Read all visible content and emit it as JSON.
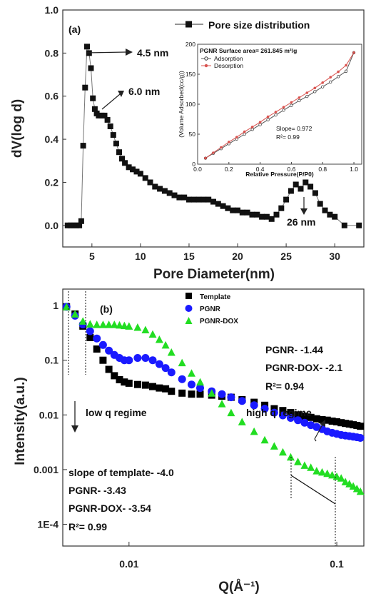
{
  "chart_data": [
    {
      "id": "a",
      "type": "line",
      "panel_label": "(a)",
      "xlabel": "Pore Diameter(nm)",
      "ylabel": "dV(log d)",
      "xlim": [
        2,
        33
      ],
      "ylim": [
        -0.1,
        1.0
      ],
      "xticks": [
        5,
        10,
        15,
        20,
        25,
        30
      ],
      "yticks": [
        0.0,
        0.2,
        0.4,
        0.6,
        0.8,
        1.0
      ],
      "xtick_labels": [
        "5",
        "10",
        "15",
        "20",
        "25",
        "30"
      ],
      "ytick_labels": [
        "0.0",
        "0.2",
        "0.4",
        "0.6",
        "0.8",
        "1.0"
      ],
      "legend": [
        "Pore size distribution"
      ],
      "legend_position": "top-right",
      "series": [
        {
          "name": "Pore size distribution",
          "x": [
            2.5,
            2.8,
            3.1,
            3.4,
            3.7,
            3.9,
            4.1,
            4.3,
            4.5,
            4.7,
            4.9,
            5.1,
            5.3,
            5.5,
            5.7,
            6.0,
            6.3,
            6.6,
            6.9,
            7.2,
            7.5,
            7.8,
            8.1,
            8.4,
            8.8,
            9.2,
            9.6,
            10.0,
            10.5,
            11.0,
            11.5,
            12.0,
            12.5,
            13.0,
            13.5,
            14.0,
            14.5,
            15.0,
            15.5,
            16.0,
            16.5,
            17.0,
            17.5,
            18.0,
            18.5,
            19.0,
            19.5,
            20.0,
            20.5,
            21.0,
            21.5,
            22.0,
            22.5,
            23.0,
            23.5,
            24.0,
            24.5,
            25.0,
            25.5,
            26.0,
            26.5,
            27.0,
            27.5,
            28.0,
            28.5,
            29.0,
            29.5,
            30.0,
            31.0,
            32.5
          ],
          "y": [
            0.0,
            0.0,
            0.0,
            0.0,
            0.0,
            0.02,
            0.37,
            0.64,
            0.83,
            0.8,
            0.73,
            0.59,
            0.54,
            0.52,
            0.51,
            0.51,
            0.51,
            0.49,
            0.46,
            0.42,
            0.38,
            0.34,
            0.31,
            0.29,
            0.27,
            0.26,
            0.25,
            0.24,
            0.22,
            0.2,
            0.18,
            0.17,
            0.16,
            0.15,
            0.14,
            0.13,
            0.13,
            0.12,
            0.12,
            0.12,
            0.12,
            0.12,
            0.11,
            0.1,
            0.09,
            0.08,
            0.07,
            0.07,
            0.06,
            0.06,
            0.05,
            0.05,
            0.04,
            0.04,
            0.03,
            0.05,
            0.08,
            0.12,
            0.16,
            0.19,
            0.17,
            0.2,
            0.18,
            0.15,
            0.1,
            0.07,
            0.05,
            0.04,
            0.0,
            0.0
          ]
        }
      ],
      "annotations": [
        {
          "text": "4.5 nm",
          "x": 4.5,
          "y": 0.83
        },
        {
          "text": "6.0 nm",
          "x": 6.0,
          "y": 0.51
        },
        {
          "text": "26 nm",
          "x": 26.8,
          "y": 0.19
        }
      ],
      "inset": {
        "type": "line",
        "title": "PGNR Surface area= 261.845 m²/g",
        "xlabel": "Relative Pressure(P/P0)",
        "ylabel": "(Volume Adsorbed(cc/g))",
        "xlim": [
          0.0,
          1.05
        ],
        "ylim": [
          0,
          200
        ],
        "xticks": [
          0.0,
          0.2,
          0.4,
          0.6,
          0.8,
          1.0
        ],
        "yticks": [
          0,
          50,
          100,
          150,
          200
        ],
        "xtick_labels": [
          "0.0",
          "0.2",
          "0.4",
          "0.6",
          "0.8",
          "1.0"
        ],
        "ytick_labels": [
          "0",
          "50",
          "100",
          "150",
          "200"
        ],
        "legend": [
          "Adsorption",
          "Desorption"
        ],
        "legend_position": "top-left",
        "series": [
          {
            "name": "Adsorption",
            "x": [
              0.05,
              0.1,
              0.15,
              0.2,
              0.25,
              0.3,
              0.35,
              0.4,
              0.45,
              0.5,
              0.55,
              0.6,
              0.65,
              0.7,
              0.75,
              0.8,
              0.85,
              0.9,
              0.95,
              1.0
            ],
            "y": [
              10,
              18,
              26,
              34,
              42,
              50,
              58,
              66,
              74,
              82,
              90,
              98,
              106,
              113,
              121,
              129,
              137,
              146,
              155,
              186
            ]
          },
          {
            "name": "Desorption",
            "x": [
              0.05,
              0.1,
              0.15,
              0.2,
              0.25,
              0.3,
              0.35,
              0.4,
              0.45,
              0.5,
              0.55,
              0.6,
              0.65,
              0.7,
              0.75,
              0.8,
              0.85,
              0.9,
              0.95,
              1.0
            ],
            "y": [
              10,
              19,
              28,
              37,
              45,
              54,
              62,
              70,
              79,
              87,
              95,
              103,
              111,
              119,
              127,
              136,
              145,
              154,
              165,
              186
            ]
          }
        ],
        "annotations": [
          "Slope= 0.972",
          "R²= 0.99"
        ]
      }
    },
    {
      "id": "b",
      "type": "scatter",
      "panel_label": "(b)",
      "xlabel": "Q(Å⁻¹)",
      "ylabel": "Intensity(a.u.)",
      "xscale": "log",
      "yscale": "log",
      "xlim": [
        0.0048,
        0.135
      ],
      "ylim": [
        4e-05,
        2.0
      ],
      "xticks": [
        0.01,
        0.1
      ],
      "yticks": [
        1,
        0.1,
        0.01,
        0.001,
        0.0001
      ],
      "xtick_labels": [
        "0.01",
        "0.1"
      ],
      "ytick_labels": [
        "1",
        "0.1",
        "0.01",
        "0.001",
        "1E-4"
      ],
      "legend": [
        "Template",
        "PGNR",
        "PGNR-DOX"
      ],
      "legend_position": "top-right",
      "series": [
        {
          "name": "Template",
          "color": "#000000",
          "marker": "square",
          "x": [
            0.005,
            0.0055,
            0.006,
            0.0065,
            0.007,
            0.0075,
            0.008,
            0.0085,
            0.009,
            0.0095,
            0.01,
            0.011,
            0.012,
            0.013,
            0.014,
            0.015,
            0.016,
            0.018,
            0.02,
            0.022,
            0.025,
            0.028,
            0.031,
            0.035,
            0.04,
            0.045,
            0.05,
            0.055,
            0.06,
            0.065,
            0.07,
            0.075,
            0.08,
            0.085,
            0.09,
            0.095,
            0.1,
            0.105,
            0.11,
            0.115,
            0.12,
            0.125,
            0.13
          ],
          "y": [
            0.95,
            0.7,
            0.42,
            0.26,
            0.16,
            0.1,
            0.068,
            0.052,
            0.044,
            0.04,
            0.038,
            0.036,
            0.035,
            0.033,
            0.031,
            0.03,
            0.027,
            0.025,
            0.024,
            0.024,
            0.023,
            0.022,
            0.021,
            0.019,
            0.017,
            0.015,
            0.013,
            0.012,
            0.011,
            0.01,
            0.0095,
            0.009,
            0.0085,
            0.0082,
            0.008,
            0.0077,
            0.0075,
            0.0072,
            0.007,
            0.0068,
            0.0066,
            0.0064,
            0.0062
          ]
        },
        {
          "name": "PGNR",
          "color": "#1a1aff",
          "marker": "circle",
          "x": [
            0.005,
            0.0055,
            0.006,
            0.0065,
            0.007,
            0.0075,
            0.008,
            0.0085,
            0.009,
            0.0095,
            0.01,
            0.011,
            0.012,
            0.013,
            0.014,
            0.015,
            0.016,
            0.018,
            0.02,
            0.022,
            0.025,
            0.028,
            0.031,
            0.035,
            0.04,
            0.045,
            0.05,
            0.055,
            0.06,
            0.065,
            0.07,
            0.075,
            0.08,
            0.085,
            0.09,
            0.095,
            0.1,
            0.105,
            0.11,
            0.115,
            0.12,
            0.125,
            0.13
          ],
          "y": [
            0.95,
            0.65,
            0.45,
            0.34,
            0.25,
            0.19,
            0.15,
            0.125,
            0.11,
            0.1,
            0.1,
            0.11,
            0.11,
            0.1,
            0.085,
            0.072,
            0.06,
            0.045,
            0.036,
            0.031,
            0.027,
            0.024,
            0.021,
            0.018,
            0.015,
            0.013,
            0.011,
            0.0098,
            0.0088,
            0.008,
            0.0072,
            0.0065,
            0.006,
            0.0055,
            0.005,
            0.0047,
            0.0045,
            0.0043,
            0.0042,
            0.0041,
            0.004,
            0.0039,
            0.0038
          ]
        },
        {
          "name": "PGNR-DOX",
          "color": "#22dd22",
          "marker": "triangle",
          "x": [
            0.005,
            0.0055,
            0.006,
            0.0065,
            0.007,
            0.0075,
            0.008,
            0.0085,
            0.009,
            0.0095,
            0.01,
            0.011,
            0.012,
            0.013,
            0.014,
            0.015,
            0.016,
            0.018,
            0.02,
            0.022,
            0.025,
            0.028,
            0.031,
            0.035,
            0.04,
            0.045,
            0.05,
            0.055,
            0.06,
            0.065,
            0.07,
            0.075,
            0.08,
            0.085,
            0.09,
            0.095,
            0.1,
            0.105,
            0.11,
            0.115,
            0.12,
            0.125,
            0.13
          ],
          "y": [
            0.95,
            0.7,
            0.52,
            0.46,
            0.45,
            0.45,
            0.45,
            0.45,
            0.44,
            0.43,
            0.42,
            0.4,
            0.36,
            0.3,
            0.24,
            0.19,
            0.14,
            0.09,
            0.058,
            0.04,
            0.025,
            0.016,
            0.011,
            0.0075,
            0.005,
            0.0035,
            0.0027,
            0.0021,
            0.0017,
            0.0014,
            0.0012,
            0.0011,
            0.00095,
            0.0009,
            0.00085,
            0.0008,
            0.00075,
            0.0007,
            0.0006,
            0.00055,
            0.0005,
            0.00045,
            0.0004
          ]
        }
      ],
      "annotations": [
        "low q regime",
        "high q regime",
        "PGNR- -1.44",
        "PGNR-DOX-  -2.1",
        "R²= 0.94",
        "slope of template- -4.0",
        "PGNR- -3.43",
        "PGNR-DOX-  -3.54",
        "R²= 0.99"
      ]
    }
  ]
}
